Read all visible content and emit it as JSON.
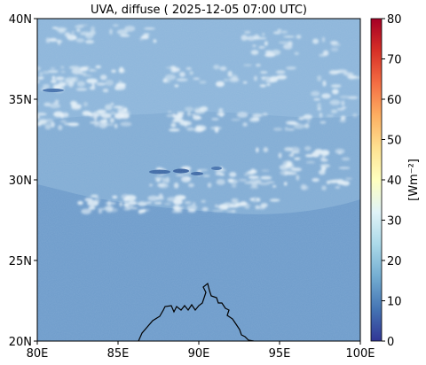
{
  "figure": {
    "title": "UVA, diffuse ( 2025-12-05 07:00 UTC)"
  },
  "map": {
    "lon_range": [
      80,
      100
    ],
    "lat_range": [
      20,
      40
    ],
    "x_tick_labels": [
      "80E",
      "85E",
      "90E",
      "95E",
      "100E"
    ],
    "x_tick_values": [
      80,
      85,
      90,
      95,
      100
    ],
    "y_tick_labels": [
      "20N",
      "25N",
      "30N",
      "35N",
      "40N"
    ],
    "y_tick_values": [
      20,
      25,
      30,
      35,
      40
    ],
    "background_color": "#6e9ccb",
    "cloud_color": "#e8f2f8",
    "coastline_color": "#000000"
  },
  "colorbar": {
    "label": "[Wm⁻²]",
    "range": [
      0,
      80
    ],
    "tick_labels": [
      "0",
      "10",
      "20",
      "30",
      "40",
      "50",
      "60",
      "70",
      "80"
    ],
    "tick_values": [
      0,
      10,
      20,
      30,
      40,
      50,
      60,
      70,
      80
    ],
    "colormap": "RdYlBu_r",
    "stops": [
      "#313695",
      "#4575b4",
      "#74add1",
      "#abd9e9",
      "#e0f3f8",
      "#ffffbf",
      "#fee090",
      "#fdae61",
      "#f46d43",
      "#d73027",
      "#a50026"
    ]
  }
}
